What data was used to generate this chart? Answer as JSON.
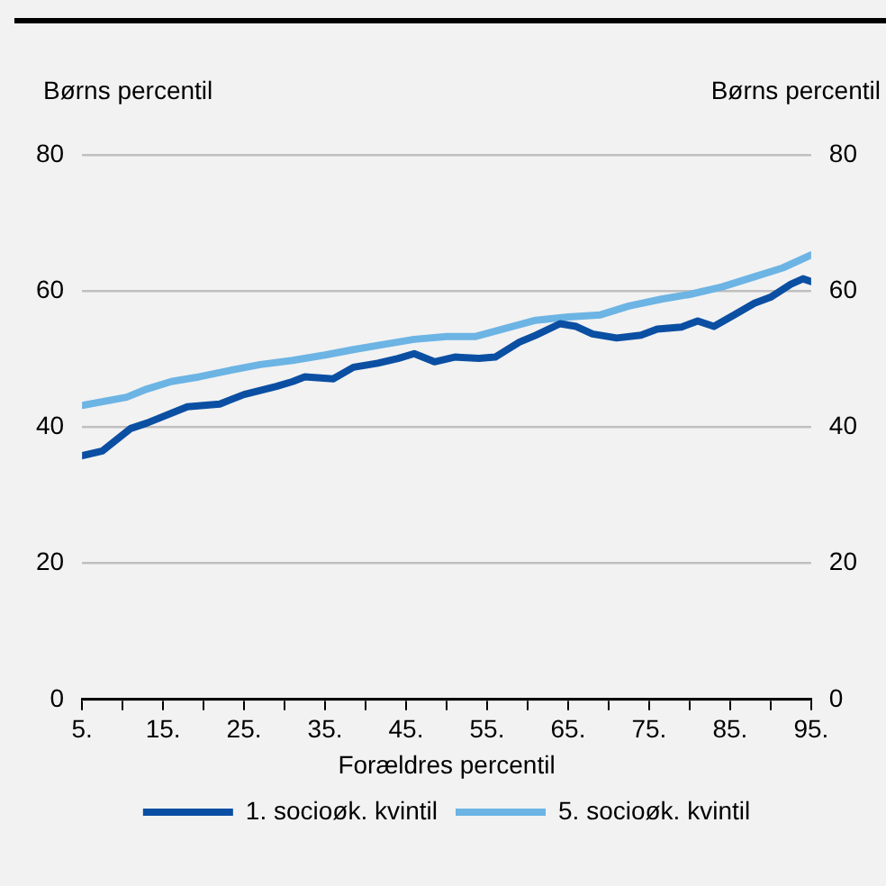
{
  "chart_data": {
    "type": "line",
    "xlabel": "Forældres percentil",
    "ylabel": "Børns percentil",
    "y2label": "Børns percentil",
    "xlim": [
      5,
      95
    ],
    "xticks": [
      {
        "value": 5,
        "label": "5."
      },
      {
        "value": 10,
        "label": null
      },
      {
        "value": 15,
        "label": "15."
      },
      {
        "value": 20,
        "label": null
      },
      {
        "value": 25,
        "label": "25."
      },
      {
        "value": 30,
        "label": null
      },
      {
        "value": 35,
        "label": "35."
      },
      {
        "value": 40,
        "label": null
      },
      {
        "value": 45,
        "label": "45."
      },
      {
        "value": 50,
        "label": null
      },
      {
        "value": 55,
        "label": "55."
      },
      {
        "value": 60,
        "label": null
      },
      {
        "value": 65,
        "label": "65."
      },
      {
        "value": 70,
        "label": null
      },
      {
        "value": 75,
        "label": "75."
      },
      {
        "value": 80,
        "label": null
      },
      {
        "value": 85,
        "label": "85."
      },
      {
        "value": 90,
        "label": null
      },
      {
        "value": 95,
        "label": "95."
      }
    ],
    "ylim": [
      0,
      80
    ],
    "yticks": [
      0,
      20,
      40,
      60,
      80
    ],
    "y2lim": [
      0,
      80
    ],
    "y2ticks": [
      0,
      20,
      40,
      60,
      80
    ],
    "grid": "y",
    "legend": "bottom",
    "marker": "none",
    "line_style": "solid",
    "series": [
      {
        "name": "1. socioøk. kvintil",
        "color": "#0b4fa3",
        "x": [
          5,
          7.5,
          11,
          13,
          18,
          22,
          25,
          29,
          31,
          32.5,
          36,
          38.5,
          41.5,
          44,
          46,
          48.5,
          51,
          54,
          56,
          59,
          61,
          64,
          66,
          68,
          71,
          74,
          76,
          79,
          81,
          83,
          85.5,
          88,
          90,
          92.5,
          94,
          95
        ],
        "values": [
          35.8,
          36.5,
          39.8,
          40.6,
          43.0,
          43.4,
          44.8,
          46.0,
          46.7,
          47.4,
          47.1,
          48.8,
          49.4,
          50.1,
          50.8,
          49.6,
          50.3,
          50.1,
          50.3,
          52.5,
          53.5,
          55.2,
          54.8,
          53.7,
          53.1,
          53.5,
          54.4,
          54.7,
          55.6,
          54.8,
          56.5,
          58.2,
          59.1,
          61.0,
          61.8,
          61.4
        ]
      },
      {
        "name": "5. socioøk. kvintil",
        "color": "#6cb4e4",
        "x": [
          5,
          10.5,
          13,
          16,
          19.5,
          23.5,
          27,
          31,
          35,
          38.5,
          42.5,
          46,
          50,
          53.5,
          57.5,
          61,
          65,
          69,
          72.5,
          76.5,
          80,
          84,
          88,
          91.5,
          95
        ],
        "values": [
          43.2,
          44.4,
          45.6,
          46.7,
          47.4,
          48.4,
          49.2,
          49.8,
          50.6,
          51.4,
          52.2,
          52.9,
          53.3,
          53.3,
          54.6,
          55.7,
          56.2,
          56.5,
          57.8,
          58.8,
          59.5,
          60.6,
          62.1,
          63.4,
          65.3
        ]
      }
    ]
  }
}
